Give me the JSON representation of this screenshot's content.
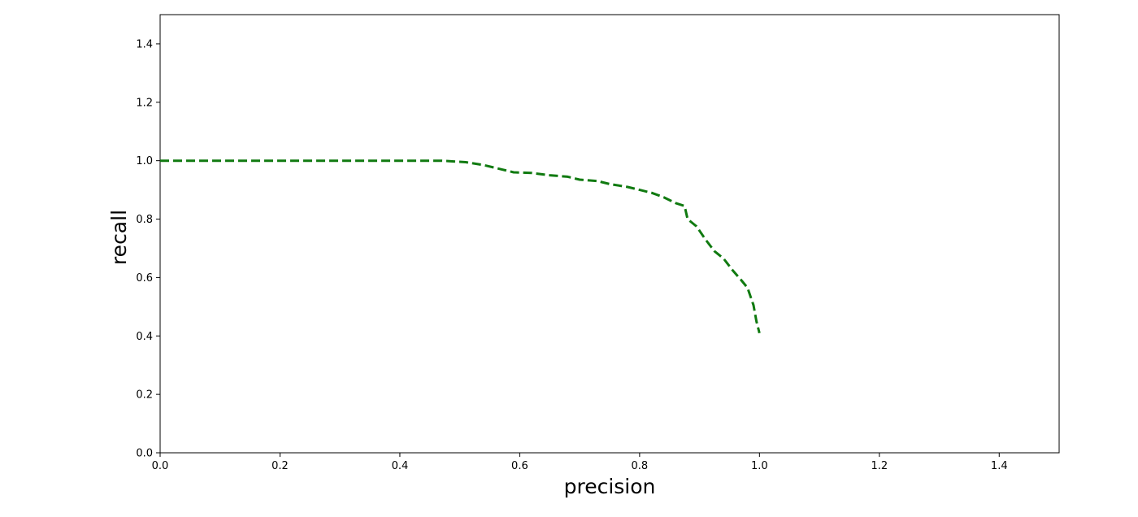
{
  "chart_data": {
    "type": "line",
    "title": "",
    "xlabel": "precision",
    "ylabel": "recall",
    "xlim": [
      0.0,
      1.5
    ],
    "ylim": [
      0.0,
      1.5
    ],
    "xticks": [
      "0.0",
      "0.2",
      "0.4",
      "0.6",
      "0.8",
      "1.0",
      "1.2",
      "1.4"
    ],
    "yticks": [
      "0.0",
      "0.2",
      "0.4",
      "0.6",
      "0.8",
      "1.0",
      "1.2",
      "1.4"
    ],
    "grid": false,
    "legend": "none",
    "series": [
      {
        "color": "#107a10",
        "line_style": "dashed",
        "x": [
          0.0,
          0.1,
          0.2,
          0.3,
          0.4,
          0.47,
          0.51,
          0.54,
          0.57,
          0.59,
          0.62,
          0.65,
          0.68,
          0.7,
          0.73,
          0.75,
          0.78,
          0.8,
          0.82,
          0.84,
          0.86,
          0.875,
          0.88,
          0.895,
          0.91,
          0.925,
          0.94,
          0.955,
          0.97,
          0.98,
          0.99,
          0.995,
          1.0
        ],
        "y": [
          1.0,
          1.0,
          1.0,
          1.0,
          1.0,
          1.0,
          0.995,
          0.985,
          0.97,
          0.96,
          0.958,
          0.95,
          0.945,
          0.935,
          0.93,
          0.92,
          0.91,
          0.9,
          0.89,
          0.875,
          0.855,
          0.845,
          0.8,
          0.775,
          0.73,
          0.69,
          0.665,
          0.625,
          0.59,
          0.565,
          0.505,
          0.45,
          0.41
        ]
      }
    ]
  }
}
